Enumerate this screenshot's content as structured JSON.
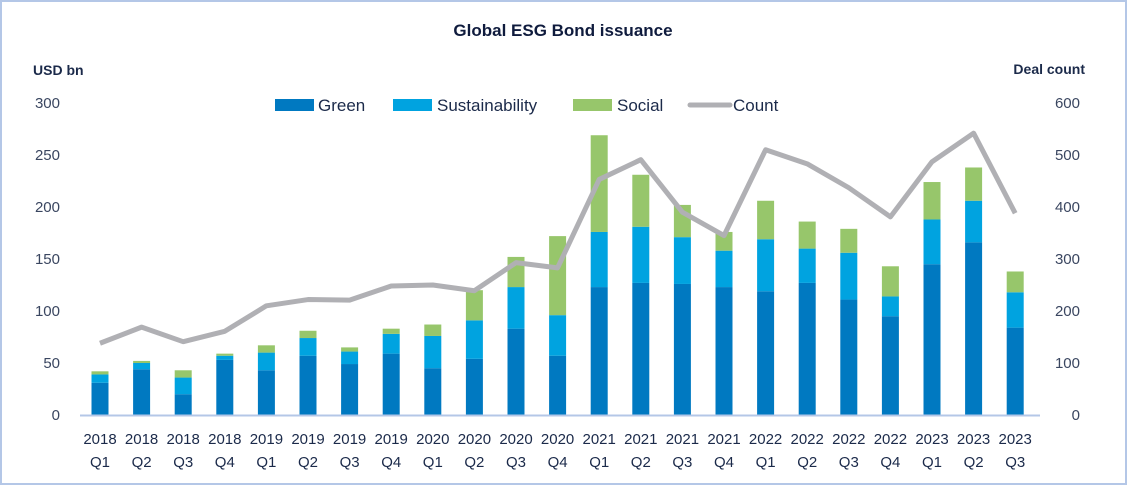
{
  "chart_data": {
    "type": "bar",
    "stacked": true,
    "title": "Global ESG Bond issuance",
    "ylabel": "USD bn",
    "y2label": "Deal count",
    "ylim": [
      0,
      300
    ],
    "y2lim": [
      0,
      600
    ],
    "yticks": [
      0,
      50,
      100,
      150,
      200,
      250,
      300
    ],
    "y2ticks": [
      0,
      100,
      200,
      300,
      400,
      500,
      600
    ],
    "grid": false,
    "legend_position": "top-center",
    "categories": [
      [
        "2018",
        "Q1"
      ],
      [
        "2018",
        "Q2"
      ],
      [
        "2018",
        "Q3"
      ],
      [
        "2018",
        "Q4"
      ],
      [
        "2019",
        "Q1"
      ],
      [
        "2019",
        "Q2"
      ],
      [
        "2019",
        "Q3"
      ],
      [
        "2019",
        "Q4"
      ],
      [
        "2020",
        "Q1"
      ],
      [
        "2020",
        "Q2"
      ],
      [
        "2020",
        "Q3"
      ],
      [
        "2020",
        "Q4"
      ],
      [
        "2021",
        "Q1"
      ],
      [
        "2021",
        "Q2"
      ],
      [
        "2021",
        "Q3"
      ],
      [
        "2021",
        "Q4"
      ],
      [
        "2022",
        "Q1"
      ],
      [
        "2022",
        "Q2"
      ],
      [
        "2022",
        "Q3"
      ],
      [
        "2022",
        "Q4"
      ],
      [
        "2023",
        "Q1"
      ],
      [
        "2023",
        "Q2"
      ],
      [
        "2023",
        "Q3"
      ]
    ],
    "series": [
      {
        "name": "Green",
        "type": "bar",
        "axis": "left",
        "color": "#0079C1",
        "values": [
          31,
          44,
          20,
          53,
          43,
          57,
          49,
          59,
          45,
          54,
          83,
          57,
          123,
          127,
          126,
          123,
          119,
          127,
          111,
          95,
          145,
          166,
          84
        ]
      },
      {
        "name": "Sustainability",
        "type": "bar",
        "axis": "left",
        "color": "#00A3E0",
        "values": [
          8,
          6,
          16,
          4,
          17,
          17,
          12,
          19,
          31,
          37,
          40,
          39,
          53,
          54,
          45,
          35,
          50,
          33,
          45,
          19,
          43,
          40,
          34
        ]
      },
      {
        "name": "Social",
        "type": "bar",
        "axis": "left",
        "color": "#97C66B",
        "values": [
          3,
          2,
          7,
          2,
          7,
          7,
          4,
          5,
          11,
          29,
          29,
          76,
          93,
          50,
          31,
          18,
          37,
          26,
          23,
          29,
          36,
          32,
          20
        ]
      },
      {
        "name": "Count",
        "type": "line",
        "axis": "right",
        "color": "#B0B0B4",
        "values": [
          138,
          169,
          141,
          161,
          210,
          222,
          221,
          248,
          250,
          239,
          293,
          283,
          453,
          491,
          390,
          345,
          510,
          483,
          437,
          381,
          487,
          542,
          388
        ]
      }
    ]
  }
}
